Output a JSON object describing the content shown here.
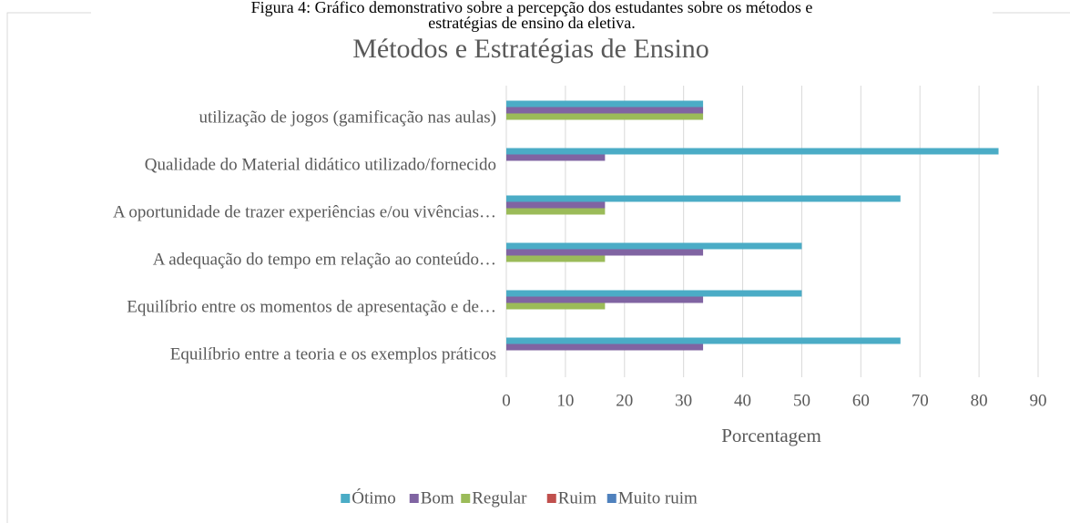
{
  "caption": [
    "Figura 4: Gráfico demonstrativo sobre a percepção dos estudantes sobre os métodos e",
    "estratégias de ensino da eletiva."
  ],
  "chart_data": {
    "type": "bar",
    "orientation": "horizontal",
    "title": "Métodos e Estratégias de Ensino",
    "x_label": "Porcentagem",
    "categories": [
      "utilização de jogos (gamificação nas aulas)",
      "Qualidade do Material didático utilizado/fornecido",
      "A oportunidade de trazer experiências e/ou vivências…",
      "A adequação do tempo em relação ao conteúdo…",
      "Equilíbrio entre os momentos de apresentação e de…",
      "Equilíbrio entre a teoria e os exemplos práticos"
    ],
    "series": [
      {
        "name": "Ótimo",
        "color": "#4bacc6",
        "values": [
          33.3,
          83.3,
          66.7,
          50,
          50,
          66.7
        ]
      },
      {
        "name": "Bom",
        "color": "#8064a2",
        "values": [
          33.3,
          16.7,
          16.7,
          33.3,
          33.3,
          33.3
        ]
      },
      {
        "name": "Regular",
        "color": "#9bbb59",
        "values": [
          33.3,
          0,
          16.7,
          16.7,
          16.7,
          0
        ]
      },
      {
        "name": "Ruim",
        "color": "#c0504d",
        "values": [
          0,
          0,
          0,
          0,
          0,
          0
        ]
      },
      {
        "name": "Muito ruim",
        "color": "#4f81bd",
        "values": [
          0,
          0,
          0,
          0,
          0,
          0
        ]
      }
    ],
    "xlim": [
      0,
      90
    ],
    "xticks": [
      0,
      10,
      20,
      30,
      40,
      50,
      60,
      70,
      80,
      90
    ],
    "grid": true,
    "legend": "bottom"
  }
}
